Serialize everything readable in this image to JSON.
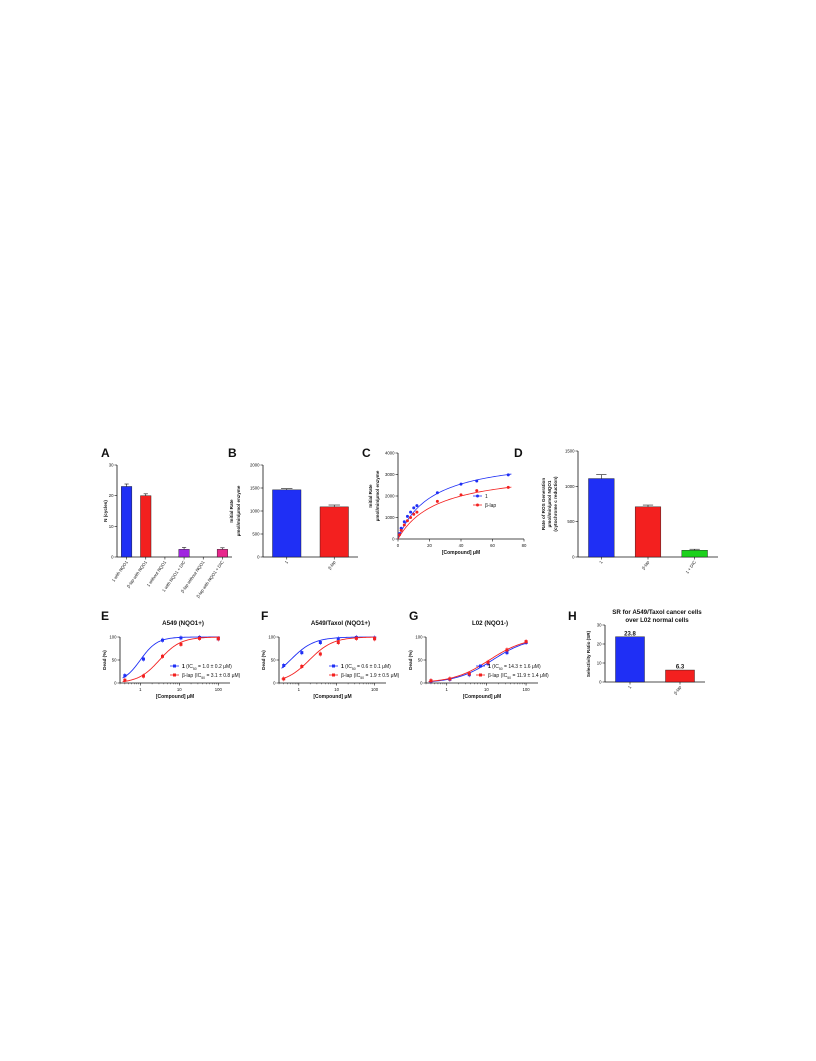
{
  "colors": {
    "blue": "#1F2FF5",
    "red": "#F3201F",
    "purple": "#A024E0",
    "magenta": "#E8268C",
    "green": "#1BD11B",
    "axis": "#111111"
  },
  "panel_labels": [
    "A",
    "B",
    "C",
    "D",
    "E",
    "F",
    "G",
    "H"
  ],
  "chart_data": [
    {
      "panel": "A",
      "type": "bar",
      "categories": [
        "1 with NQO1",
        "β-lap with NQO1",
        "1 without NQO1",
        "1 with NQO1 + DIC",
        "β-lap without NQO1",
        "β-lap with NQO1 + DIC"
      ],
      "values": [
        23,
        20,
        0,
        2.5,
        0,
        2.5
      ],
      "errors": [
        0.8,
        0.6,
        0,
        0.6,
        0,
        0.5
      ],
      "colors": [
        "blue",
        "red",
        "purple",
        "purple",
        "magenta",
        "magenta"
      ],
      "ylabel": "N (cycles)",
      "ylim": [
        0,
        30
      ],
      "yticks": [
        0,
        10,
        20,
        30
      ]
    },
    {
      "panel": "B",
      "type": "bar",
      "categories": [
        "1",
        "β-lap"
      ],
      "values": [
        1460,
        1090
      ],
      "errors": [
        25,
        40
      ],
      "colors": [
        "blue",
        "red"
      ],
      "ylabel_lines": [
        "Initial Rate",
        "μmol/min/μmol enzyme"
      ],
      "ylim": [
        0,
        2000
      ],
      "yticks": [
        0,
        500,
        1000,
        1500,
        2000
      ]
    },
    {
      "panel": "C",
      "type": "line",
      "xlabel": "[Compound] μM",
      "ylabel_lines": [
        "Initial Rate",
        "μmol/min/μmol enzyme"
      ],
      "xlim": [
        0,
        80
      ],
      "ylim": [
        0,
        4000
      ],
      "xticks": [
        0,
        20,
        40,
        60,
        80
      ],
      "yticks": [
        0,
        1000,
        2000,
        3000,
        4000
      ],
      "legend": [
        "1",
        "β-lap"
      ],
      "legend_position": "center-right",
      "series": [
        {
          "name": "1",
          "color": "blue",
          "x": [
            1,
            2,
            4,
            6,
            8,
            10,
            12,
            25,
            40,
            50,
            70
          ],
          "y": [
            250,
            500,
            800,
            1050,
            1250,
            1450,
            1550,
            2150,
            2550,
            2700,
            2980
          ],
          "fit": {
            "model": "michaelis-menten",
            "vmax": 3900,
            "km": 21
          }
        },
        {
          "name": "β-lap",
          "color": "red",
          "x": [
            1,
            2,
            4,
            6,
            8,
            10,
            12,
            25,
            40,
            50,
            70
          ],
          "y": [
            200,
            400,
            650,
            850,
            1000,
            1150,
            1250,
            1750,
            2050,
            2250,
            2400
          ],
          "fit": {
            "model": "michaelis-menten",
            "vmax": 3250,
            "km": 25
          }
        }
      ]
    },
    {
      "panel": "D",
      "type": "bar",
      "categories": [
        "1",
        "β-lap",
        "1 + DIC"
      ],
      "values": [
        1110,
        710,
        95
      ],
      "errors": [
        55,
        25,
        15
      ],
      "colors": [
        "blue",
        "red",
        "green"
      ],
      "ylabel_lines": [
        "Rate of ROS Generation",
        "μmol/min/μmol NQO1",
        "(cytochrome c reduction)"
      ],
      "ylim": [
        0,
        1500
      ],
      "yticks": [
        0,
        500,
        1000,
        1500
      ]
    },
    {
      "panel": "E",
      "type": "scatter",
      "title": "A549 (NQO1+)",
      "xscale": "log",
      "xlabel": "[Compound] μM",
      "ylabel": "Dead (%)",
      "xlim": [
        0.3,
        200
      ],
      "ylim": [
        0,
        100
      ],
      "xticks": [
        1,
        10,
        100
      ],
      "yticks": [
        0,
        50,
        100
      ],
      "legend_position": "lower-right",
      "series": [
        {
          "name": "1",
          "legend_value": "1.0 ± 0.2",
          "color": "blue",
          "x": [
            0.4,
            1.2,
            3.7,
            11,
            33,
            100
          ],
          "y": [
            16,
            52,
            93,
            98,
            99,
            96
          ],
          "fit": {
            "ic50": 1.0,
            "hill": 2.0,
            "bottom": 0,
            "top": 100
          }
        },
        {
          "name": "β-lap",
          "legend_value": "3.1 ± 0.8",
          "color": "red",
          "x": [
            0.4,
            1.2,
            3.7,
            11,
            33,
            100
          ],
          "y": [
            6,
            15,
            58,
            84,
            97,
            96
          ],
          "fit": {
            "ic50": 3.1,
            "hill": 1.6,
            "bottom": 0,
            "top": 100
          }
        }
      ]
    },
    {
      "panel": "F",
      "type": "scatter",
      "title": "A549/Taxol (NQO1+)",
      "xscale": "log",
      "xlabel": "[Compound] μM",
      "ylabel": "Dead (%)",
      "xlim": [
        0.3,
        200
      ],
      "ylim": [
        0,
        100
      ],
      "xticks": [
        1,
        10,
        100
      ],
      "yticks": [
        0,
        50,
        100
      ],
      "legend_position": "lower-right",
      "series": [
        {
          "name": "1",
          "legend_value": "0.6 ± 0.1",
          "color": "blue",
          "x": [
            0.4,
            1.2,
            3.7,
            11,
            33,
            100
          ],
          "y": [
            38,
            66,
            88,
            96,
            99,
            98
          ],
          "fit": {
            "ic50": 0.6,
            "hill": 1.4,
            "bottom": 0,
            "top": 100
          }
        },
        {
          "name": "β-lap",
          "legend_value": "1.9 ± 0.5",
          "color": "red",
          "x": [
            0.4,
            1.2,
            3.7,
            11,
            33,
            100
          ],
          "y": [
            9,
            36,
            63,
            88,
            97,
            96
          ],
          "fit": {
            "ic50": 1.9,
            "hill": 1.4,
            "bottom": 0,
            "top": 100
          }
        }
      ]
    },
    {
      "panel": "G",
      "type": "scatter",
      "title": "L02 (NQO1-)",
      "xscale": "log",
      "xlabel": "[Compound] μM",
      "ylabel": "Dead (%)",
      "xlim": [
        0.3,
        200
      ],
      "ylim": [
        0,
        100
      ],
      "xticks": [
        1,
        10,
        100
      ],
      "yticks": [
        0,
        50,
        100
      ],
      "legend_position": "lower-right",
      "series": [
        {
          "name": "1",
          "legend_value": "14.3 ± 1.6",
          "color": "blue",
          "x": [
            0.4,
            1.2,
            3.7,
            11,
            33,
            100
          ],
          "y": [
            4,
            8,
            18,
            42,
            66,
            88
          ],
          "fit": {
            "ic50": 14.3,
            "hill": 0.95,
            "bottom": 0,
            "top": 100
          }
        },
        {
          "name": "β-lap",
          "legend_value": "11.9 ± 1.4",
          "color": "red",
          "x": [
            0.4,
            1.2,
            3.7,
            11,
            33,
            100
          ],
          "y": [
            5,
            9,
            20,
            45,
            72,
            90
          ],
          "fit": {
            "ic50": 11.9,
            "hill": 0.95,
            "bottom": 0,
            "top": 100
          }
        }
      ]
    },
    {
      "panel": "H",
      "type": "bar",
      "title_lines": [
        "SR for A549/Taxol cancer cells",
        "over L02 normal cells"
      ],
      "categories": [
        "1",
        "β-lap"
      ],
      "values": [
        23.8,
        6.3
      ],
      "data_labels": [
        "23.8",
        "6.3"
      ],
      "colors": [
        "blue",
        "red"
      ],
      "ylabel": "Selectivity Ratio (SR)",
      "ylim": [
        0,
        30
      ],
      "yticks": [
        0,
        10,
        20,
        30
      ]
    }
  ]
}
